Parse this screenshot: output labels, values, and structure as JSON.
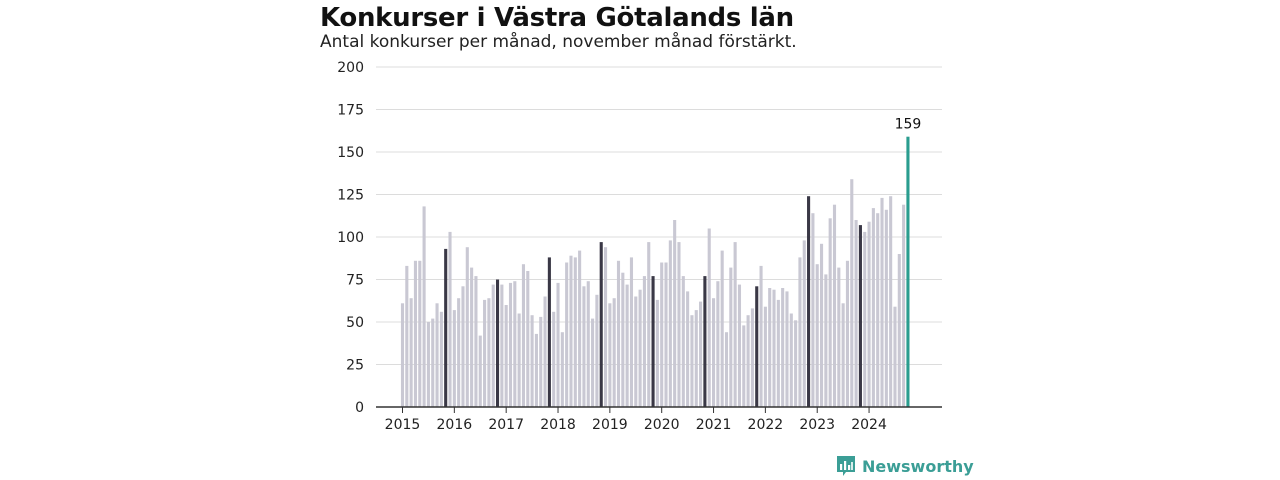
{
  "header": {
    "title": "Konkurser i Västra Götalands län",
    "subtitle": "Antal konkurser per månad, november månad förstärkt."
  },
  "brand": {
    "name": "Newsworthy",
    "icon": "bar-chart-chat-icon"
  },
  "colors": {
    "bar": "#c9c8d3",
    "november": "#3a3846",
    "latest": "#2a9d8f",
    "grid": "#dcdcdc",
    "axis": "#333333",
    "brand": "#3b9e96"
  },
  "chart_data": {
    "type": "bar",
    "title": "Konkurser i Västra Götalands län",
    "subtitle": "Antal konkurser per månad, november månad förstärkt.",
    "ylim": [
      0,
      200
    ],
    "y_ticks": [
      "0",
      "25",
      "50",
      "75",
      "100",
      "125",
      "150",
      "175",
      "200"
    ],
    "x_tick_labels": [
      "2015",
      "2016",
      "2017",
      "2018",
      "2019",
      "2020",
      "2021",
      "2022",
      "2023",
      "2024"
    ],
    "grid": "horizontal",
    "start": "2015-01",
    "highlight": "november",
    "peak_label": "159",
    "values": [
      61,
      83,
      64,
      86,
      86,
      118,
      50,
      52,
      61,
      56,
      93,
      103,
      57,
      64,
      71,
      94,
      82,
      77,
      42,
      63,
      64,
      72,
      75,
      72,
      60,
      73,
      74,
      55,
      84,
      80,
      54,
      43,
      53,
      65,
      88,
      56,
      73,
      44,
      85,
      89,
      88,
      92,
      71,
      74,
      52,
      66,
      97,
      94,
      61,
      64,
      86,
      79,
      72,
      88,
      65,
      69,
      77,
      97,
      77,
      63,
      85,
      85,
      98,
      110,
      97,
      77,
      68,
      54,
      57,
      62,
      77,
      105,
      64,
      74,
      92,
      44,
      82,
      97,
      72,
      48,
      54,
      58,
      71,
      83,
      59,
      70,
      69,
      63,
      70,
      68,
      55,
      51,
      88,
      98,
      124,
      114,
      84,
      96,
      78,
      111,
      119,
      82,
      61,
      86,
      134,
      110,
      107,
      103,
      109,
      117,
      114,
      123,
      116,
      124,
      59,
      90,
      119,
      159
    ]
  }
}
